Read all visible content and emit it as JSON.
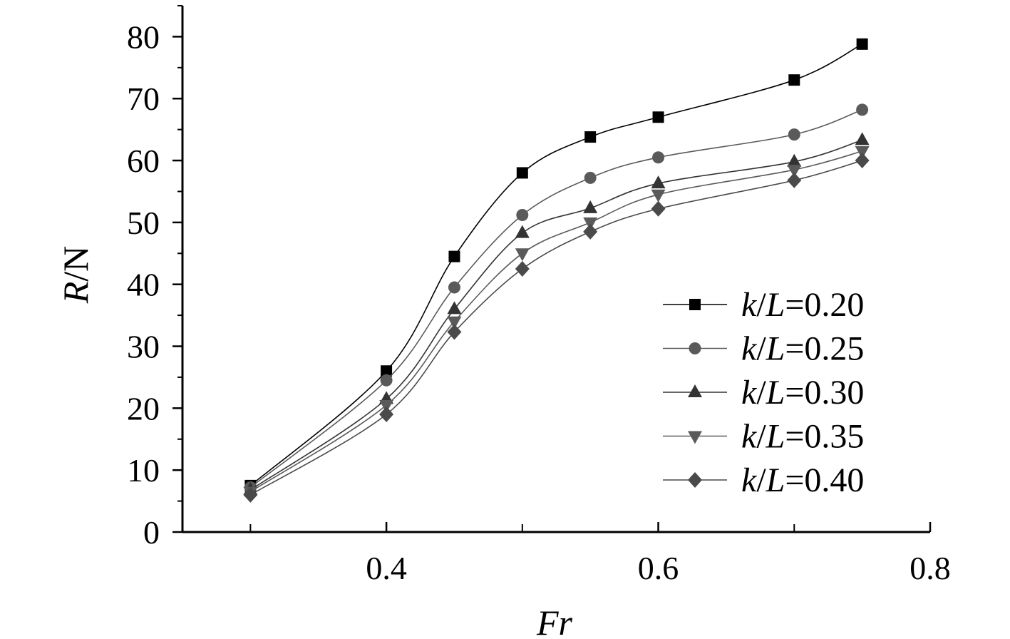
{
  "chart_data": {
    "type": "line",
    "title": "",
    "xlabel": "Fr",
    "ylabel_italic": "R",
    "ylabel_unit": "/N",
    "xlim": [
      0.25,
      0.8
    ],
    "ylim": [
      0,
      85
    ],
    "x_ticks": [
      0.4,
      0.6,
      0.8
    ],
    "x_tick_labels": [
      "0.4",
      "0.6",
      "0.8"
    ],
    "x_minor_ticks": [
      0.3,
      0.4,
      0.5,
      0.6,
      0.7,
      0.8
    ],
    "y_ticks": [
      0,
      10,
      20,
      30,
      40,
      50,
      60,
      70,
      80
    ],
    "y_tick_labels": [
      "0",
      "10",
      "20",
      "30",
      "40",
      "50",
      "60",
      "70",
      "80"
    ],
    "grid": false,
    "legend_position": "right",
    "x": [
      0.3,
      0.4,
      0.45,
      0.5,
      0.55,
      0.6,
      0.7,
      0.75
    ],
    "series": [
      {
        "name": "k/L=0.20",
        "name_italic_a": "k",
        "name_mid": "/",
        "name_italic_b": "L",
        "name_rest": "=0.20",
        "marker": "square",
        "color": "#000000",
        "values": [
          7.5,
          26.0,
          44.5,
          58.0,
          63.8,
          67.0,
          73.0,
          78.8
        ]
      },
      {
        "name": "k/L=0.25",
        "name_italic_a": "k",
        "name_mid": "/",
        "name_italic_b": "L",
        "name_rest": "=0.25",
        "marker": "circle",
        "color": "#5a5a5a",
        "values": [
          7.2,
          24.5,
          39.5,
          51.2,
          57.2,
          60.5,
          64.2,
          68.2
        ]
      },
      {
        "name": "k/L=0.30",
        "name_italic_a": "k",
        "name_mid": "/",
        "name_italic_b": "L",
        "name_rest": "=0.30",
        "marker": "triangle-up",
        "color": "#333333",
        "values": [
          6.8,
          21.5,
          36.0,
          48.3,
          52.3,
          56.3,
          59.8,
          63.3
        ]
      },
      {
        "name": "k/L=0.35",
        "name_italic_a": "k",
        "name_mid": "/",
        "name_italic_b": "L",
        "name_rest": "=0.35",
        "marker": "triangle-down",
        "color": "#5a5a5a",
        "values": [
          6.5,
          20.5,
          34.0,
          45.0,
          50.0,
          54.5,
          58.5,
          61.5
        ]
      },
      {
        "name": "k/L=0.40",
        "name_italic_a": "k",
        "name_mid": "/",
        "name_italic_b": "L",
        "name_rest": "=0.40",
        "marker": "diamond",
        "color": "#4a4a4a",
        "values": [
          6.0,
          19.0,
          32.3,
          42.5,
          48.5,
          52.2,
          56.8,
          60.0
        ]
      }
    ]
  }
}
